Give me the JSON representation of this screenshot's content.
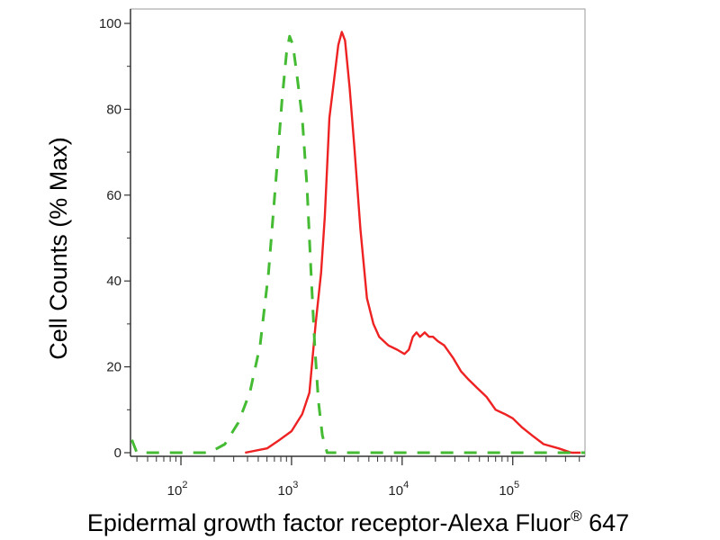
{
  "chart_data": {
    "type": "line",
    "title": "",
    "xlabel": "Epidermal growth factor receptor-Alexa Fluor",
    "xlabel_superscript": "®",
    "xlabel_suffix": " 647",
    "ylabel": "Cell Counts (% Max)",
    "x_scale": "log",
    "xlim": [
      35,
      450000
    ],
    "ylim": [
      0,
      100
    ],
    "grid": false,
    "legend": "none",
    "y_ticks": [
      {
        "value": 0,
        "label": "0"
      },
      {
        "value": 20,
        "label": "20"
      },
      {
        "value": 40,
        "label": "40"
      },
      {
        "value": 60,
        "label": "60"
      },
      {
        "value": 80,
        "label": "80"
      },
      {
        "value": 100,
        "label": "100"
      }
    ],
    "x_ticks": [
      {
        "value": 100,
        "base": "10",
        "exp": "2"
      },
      {
        "value": 1000,
        "base": "10",
        "exp": "3"
      },
      {
        "value": 10000,
        "base": "10",
        "exp": "4"
      },
      {
        "value": 100000,
        "base": "10",
        "exp": "5"
      }
    ],
    "series": [
      {
        "color": "#ee2222",
        "style": "solid",
        "points": [
          [
            380,
            0
          ],
          [
            600,
            1
          ],
          [
            780,
            3
          ],
          [
            1000,
            5
          ],
          [
            1250,
            9
          ],
          [
            1450,
            14
          ],
          [
            1650,
            30
          ],
          [
            1850,
            42
          ],
          [
            2000,
            55
          ],
          [
            2200,
            78
          ],
          [
            2400,
            86
          ],
          [
            2650,
            95
          ],
          [
            2850,
            98
          ],
          [
            3050,
            96
          ],
          [
            3350,
            85
          ],
          [
            3700,
            71
          ],
          [
            4200,
            52
          ],
          [
            4800,
            36
          ],
          [
            5500,
            30
          ],
          [
            6200,
            27
          ],
          [
            7500,
            25
          ],
          [
            9000,
            24
          ],
          [
            10500,
            23
          ],
          [
            11500,
            24
          ],
          [
            12500,
            27
          ],
          [
            13500,
            28
          ],
          [
            14500,
            27
          ],
          [
            16000,
            28
          ],
          [
            17500,
            27
          ],
          [
            19000,
            27
          ],
          [
            21000,
            26
          ],
          [
            24000,
            25
          ],
          [
            29000,
            22
          ],
          [
            34000,
            19
          ],
          [
            40000,
            17
          ],
          [
            48000,
            15
          ],
          [
            58000,
            13
          ],
          [
            70000,
            10
          ],
          [
            85000,
            9
          ],
          [
            100000,
            8
          ],
          [
            120000,
            6
          ],
          [
            150000,
            4
          ],
          [
            190000,
            2
          ],
          [
            260000,
            1
          ],
          [
            340000,
            0
          ],
          [
            410000,
            0
          ]
        ]
      },
      {
        "color": "#44bb33",
        "style": "dashed",
        "points": [
          [
            36,
            3
          ],
          [
            40,
            0
          ],
          [
            100,
            0
          ],
          [
            180,
            0
          ],
          [
            250,
            2
          ],
          [
            330,
            7
          ],
          [
            420,
            14
          ],
          [
            520,
            25
          ],
          [
            620,
            42
          ],
          [
            720,
            63
          ],
          [
            820,
            82
          ],
          [
            900,
            93
          ],
          [
            960,
            97
          ],
          [
            1030,
            95
          ],
          [
            1130,
            87
          ],
          [
            1250,
            78
          ],
          [
            1380,
            62
          ],
          [
            1500,
            42
          ],
          [
            1620,
            25
          ],
          [
            1750,
            12
          ],
          [
            1900,
            4
          ],
          [
            2100,
            0
          ],
          [
            10000,
            0
          ],
          [
            100000,
            0
          ],
          [
            450000,
            0
          ]
        ]
      }
    ]
  }
}
